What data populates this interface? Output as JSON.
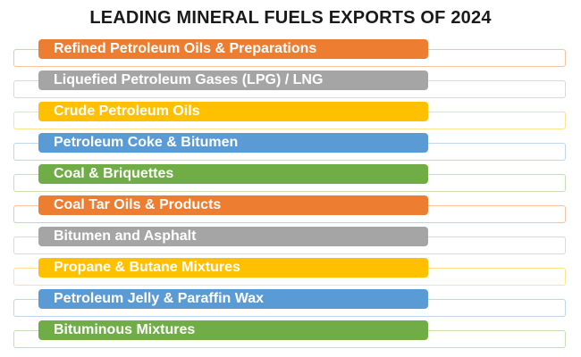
{
  "title": "LEADING MINERAL FUELS EXPORTS OF 2024",
  "items": [
    {
      "label": "Refined Petroleum Oils & Preparations",
      "color": "#ED7D31",
      "tint": "#F5C3A0"
    },
    {
      "label": "Liquefied Petroleum Gases (LPG) / LNG",
      "color": "#A5A5A5",
      "tint": "#D9D9D9"
    },
    {
      "label": "Crude Petroleum Oils",
      "color": "#FFC000",
      "tint": "#FFE391"
    },
    {
      "label": "Petroleum Coke & Bitumen",
      "color": "#5B9BD5",
      "tint": "#BDD7EE"
    },
    {
      "label": "Coal & Briquettes",
      "color": "#70AD47",
      "tint": "#C6E0B4"
    },
    {
      "label": "Coal Tar Oils & Products",
      "color": "#ED7D31",
      "tint": "#F5C3A0"
    },
    {
      "label": "Bitumen and Asphalt",
      "color": "#A5A5A5",
      "tint": "#D9D9D9"
    },
    {
      "label": "Propane & Butane Mixtures",
      "color": "#FFC000",
      "tint": "#FFE391"
    },
    {
      "label": "Petroleum Jelly & Paraffin Wax",
      "color": "#5B9BD5",
      "tint": "#BDD7EE"
    },
    {
      "label": "Bituminous Mixtures",
      "color": "#70AD47",
      "tint": "#C6E0B4"
    }
  ]
}
